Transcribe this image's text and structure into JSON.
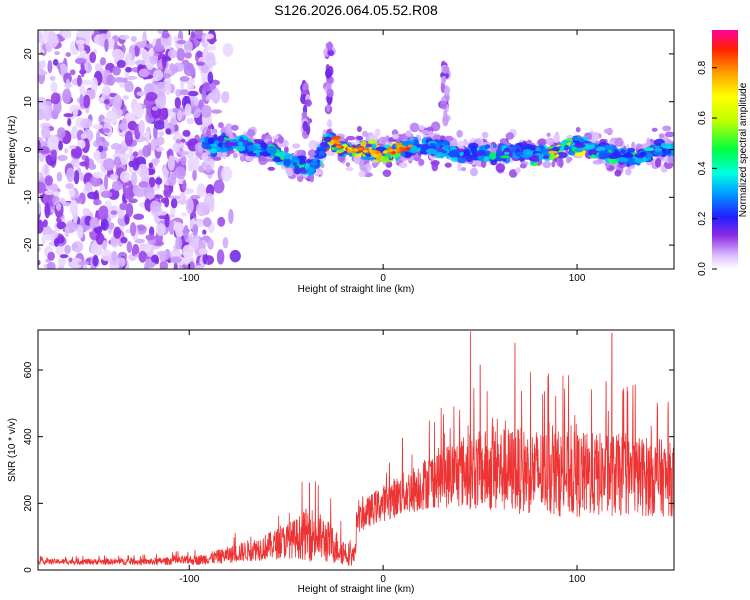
{
  "title": "S126.2026.064.05.52.R08",
  "chart_data": [
    {
      "type": "heatmap",
      "xlabel": "Height of straight line (km)",
      "ylabel": "Frequency (Hz)",
      "xlim": [
        -178,
        150
      ],
      "ylim": [
        -25,
        25
      ],
      "xticks": [
        -100,
        0,
        100
      ],
      "yticks": [
        -20,
        -10,
        0,
        10,
        20
      ],
      "colorbar": {
        "label": "Normalized spectral amplitude",
        "range": [
          0,
          0.95
        ],
        "ticks": [
          0.0,
          0.2,
          0.4,
          0.6,
          0.8
        ]
      },
      "ridge": [
        {
          "x": -90,
          "y": 1
        },
        {
          "x": -75,
          "y": 1
        },
        {
          "x": -60,
          "y": 0
        },
        {
          "x": -45,
          "y": -3
        },
        {
          "x": -38,
          "y": -4
        },
        {
          "x": -32,
          "y": -1
        },
        {
          "x": -28,
          "y": 2
        },
        {
          "x": -20,
          "y": 0
        },
        {
          "x": -10,
          "y": 0
        },
        {
          "x": 0,
          "y": -1
        },
        {
          "x": 10,
          "y": 0
        },
        {
          "x": 20,
          "y": 1
        },
        {
          "x": 30,
          "y": 0
        },
        {
          "x": 40,
          "y": -1
        },
        {
          "x": 50,
          "y": -1
        },
        {
          "x": 60,
          "y": -1
        },
        {
          "x": 70,
          "y": 0
        },
        {
          "x": 80,
          "y": -1
        },
        {
          "x": 90,
          "y": 0
        },
        {
          "x": 100,
          "y": 1
        },
        {
          "x": 110,
          "y": 0
        },
        {
          "x": 120,
          "y": -1
        },
        {
          "x": 130,
          "y": -2
        },
        {
          "x": 140,
          "y": 0
        },
        {
          "x": 150,
          "y": 0
        }
      ]
    },
    {
      "type": "line",
      "xlabel": "Height of straight line (km)",
      "ylabel": "SNR (10 * v/v)",
      "xlim": [
        -178,
        150
      ],
      "ylim": [
        0,
        720
      ],
      "xticks": [
        -100,
        0,
        100
      ],
      "yticks": [
        0,
        200,
        400,
        600
      ],
      "line_color": "#ee3333",
      "envelope": [
        {
          "x": -178,
          "base": 25,
          "spread": 8
        },
        {
          "x": -120,
          "base": 25,
          "spread": 10
        },
        {
          "x": -95,
          "base": 30,
          "spread": 15
        },
        {
          "x": -80,
          "base": 45,
          "spread": 25
        },
        {
          "x": -60,
          "base": 70,
          "spread": 40
        },
        {
          "x": -45,
          "base": 95,
          "spread": 60
        },
        {
          "x": -38,
          "base": 110,
          "spread": 85
        },
        {
          "x": -30,
          "base": 90,
          "spread": 70
        },
        {
          "x": -20,
          "base": 55,
          "spread": 40
        },
        {
          "x": -15,
          "base": 40,
          "spread": 30
        },
        {
          "x": -13,
          "base": 150,
          "spread": 40
        },
        {
          "x": -5,
          "base": 185,
          "spread": 50
        },
        {
          "x": 5,
          "base": 215,
          "spread": 60
        },
        {
          "x": 15,
          "base": 240,
          "spread": 70
        },
        {
          "x": 25,
          "base": 270,
          "spread": 85
        },
        {
          "x": 40,
          "base": 295,
          "spread": 110
        },
        {
          "x": 60,
          "base": 300,
          "spread": 130
        },
        {
          "x": 80,
          "base": 295,
          "spread": 130
        },
        {
          "x": 100,
          "base": 285,
          "spread": 130
        },
        {
          "x": 120,
          "base": 285,
          "spread": 125
        },
        {
          "x": 140,
          "base": 280,
          "spread": 120
        },
        {
          "x": 150,
          "base": 270,
          "spread": 110
        }
      ],
      "peaks": [
        {
          "x": 45,
          "y": 715
        },
        {
          "x": 50,
          "y": 615
        },
        {
          "x": 68,
          "y": 680
        },
        {
          "x": 118,
          "y": 710
        },
        {
          "x": 130,
          "y": 555
        },
        {
          "x": 115,
          "y": 565
        },
        {
          "x": 85,
          "y": 580
        },
        {
          "x": -38,
          "y": 260
        },
        {
          "x": 10,
          "y": 395
        }
      ]
    }
  ]
}
